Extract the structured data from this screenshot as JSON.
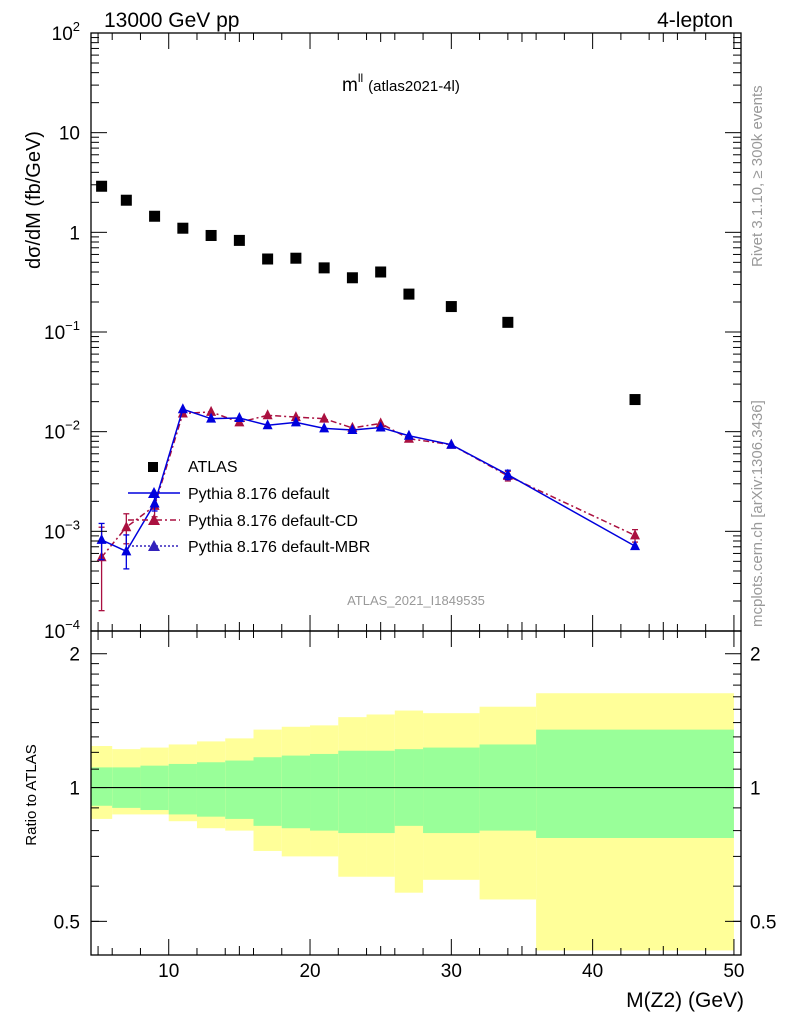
{
  "header": {
    "left": "13000 GeV pp",
    "right": "4-lepton"
  },
  "plot_label": {
    "main": "m",
    "sup": "ll",
    "sub": "(atlas2021-4l)"
  },
  "side_labels": {
    "rivet": "Rivet 3.1.10, ≥ 300k events",
    "mcplots": "mcplots.cern.ch [arXiv:1306.3436]"
  },
  "watermark": "ATLAS_2021_I1849535",
  "legend": {
    "data": "ATLAS",
    "default": "Pythia 8.176 default",
    "cd": "Pythia 8.176 default-CD",
    "mbr": "Pythia 8.176 default-MBR"
  },
  "colors": {
    "data": "#000000",
    "default": "#0000dd",
    "cd": "#aa1040",
    "mbr": "#3322bb",
    "band_outer": "#ffff99",
    "band_inner": "#99ff99"
  },
  "chart_data": {
    "type": "scatter",
    "xlabel": "M(Z2) (GeV)",
    "ylabel": "dσ/dM (fb/GeV)",
    "ratio_ylabel": "Ratio to ATLAS",
    "xlim": [
      4.5,
      50.5
    ],
    "ylim": [
      0.0001,
      100
    ],
    "yscale": "log",
    "ratio_ylim": [
      0.42,
      2.25
    ],
    "y_ticks": [
      {
        "v": 100,
        "b": "10",
        "e": "2"
      },
      {
        "v": 10,
        "b": "10",
        "e": ""
      },
      {
        "v": 1,
        "b": "1",
        "e": ""
      },
      {
        "v": 0.1,
        "b": "10",
        "e": "−1"
      },
      {
        "v": 0.01,
        "b": "10",
        "e": "−2"
      },
      {
        "v": 0.001,
        "b": "10",
        "e": "−3"
      },
      {
        "v": 0.0001,
        "b": "10",
        "e": "−4"
      }
    ],
    "x_ticks": [
      10,
      20,
      30,
      40,
      50
    ],
    "ratio_ticks": [
      0.5,
      1,
      2
    ],
    "data": {
      "x": [
        5.25,
        7,
        9,
        11,
        13,
        15,
        17,
        19,
        21,
        23,
        25,
        27,
        30,
        34,
        43
      ],
      "y": [
        2.9,
        2.1,
        1.45,
        1.1,
        0.93,
        0.83,
        0.54,
        0.55,
        0.44,
        0.35,
        0.4,
        0.24,
        0.18,
        0.125,
        0.021
      ],
      "bins": [
        [
          4.5,
          6
        ],
        [
          6,
          8
        ],
        [
          8,
          10
        ],
        [
          10,
          12
        ],
        [
          12,
          14
        ],
        [
          14,
          16
        ],
        [
          16,
          18
        ],
        [
          18,
          20
        ],
        [
          20,
          22
        ],
        [
          22,
          24
        ],
        [
          24,
          26
        ],
        [
          26,
          28
        ],
        [
          28,
          32
        ],
        [
          32,
          36
        ],
        [
          36,
          50
        ]
      ],
      "band_inner": [
        [
          0.91,
          1.11
        ],
        [
          0.9,
          1.11
        ],
        [
          0.89,
          1.12
        ],
        [
          0.87,
          1.13
        ],
        [
          0.86,
          1.14
        ],
        [
          0.85,
          1.15
        ],
        [
          0.82,
          1.17
        ],
        [
          0.81,
          1.18
        ],
        [
          0.8,
          1.19
        ],
        [
          0.79,
          1.21
        ],
        [
          0.79,
          1.21
        ],
        [
          0.82,
          1.22
        ],
        [
          0.79,
          1.23
        ],
        [
          0.8,
          1.25
        ],
        [
          0.77,
          1.35
        ]
      ],
      "band_outer": [
        [
          0.85,
          1.24
        ],
        [
          0.87,
          1.22
        ],
        [
          0.87,
          1.23
        ],
        [
          0.84,
          1.25
        ],
        [
          0.81,
          1.27
        ],
        [
          0.8,
          1.29
        ],
        [
          0.72,
          1.35
        ],
        [
          0.7,
          1.37
        ],
        [
          0.7,
          1.38
        ],
        [
          0.63,
          1.44
        ],
        [
          0.63,
          1.46
        ],
        [
          0.58,
          1.49
        ],
        [
          0.62,
          1.47
        ],
        [
          0.56,
          1.52
        ],
        [
          0.43,
          1.63
        ]
      ]
    },
    "series": [
      {
        "name": "Pythia 8.176 default",
        "key": "default",
        "x": [
          5.25,
          7,
          9,
          11,
          13,
          15,
          17,
          19,
          21,
          23,
          25,
          27,
          30,
          34,
          43
        ],
        "y": [
          0.00082,
          0.00063,
          0.0019,
          0.0168,
          0.0135,
          0.0137,
          0.0116,
          0.0124,
          0.0108,
          0.0104,
          0.011,
          0.0091,
          0.0074,
          0.0037,
          0.00071
        ],
        "err": [
          [
            0.00052,
            0.0012
          ],
          [
            0.00042,
            0.00092
          ],
          [
            0.0016,
            0.0023
          ],
          null,
          null,
          null,
          null,
          null,
          null,
          null,
          null,
          null,
          null,
          [
            0.0033,
            0.0041
          ],
          null
        ]
      },
      {
        "name": "Pythia 8.176 default-CD",
        "key": "cd",
        "x": [
          5.25,
          7,
          9,
          11,
          13,
          15,
          17,
          19,
          21,
          23,
          25,
          27,
          30,
          34,
          43
        ],
        "y": [
          0.00055,
          0.0011,
          0.0018,
          0.0152,
          0.0158,
          0.0124,
          0.0146,
          0.014,
          0.0135,
          0.0109,
          0.0121,
          0.0085,
          0.0074,
          0.0036,
          0.00091
        ],
        "err": [
          [
            0.00016,
            0.0011
          ],
          [
            0.00075,
            0.0015
          ],
          [
            0.0014,
            0.0022
          ],
          null,
          null,
          null,
          null,
          null,
          null,
          null,
          null,
          null,
          null,
          [
            0.0032,
            0.004
          ],
          [
            0.00078,
            0.00104
          ]
        ]
      },
      {
        "name": "Pythia 8.176 default-MBR",
        "key": "mbr",
        "x": [],
        "y": []
      }
    ]
  }
}
